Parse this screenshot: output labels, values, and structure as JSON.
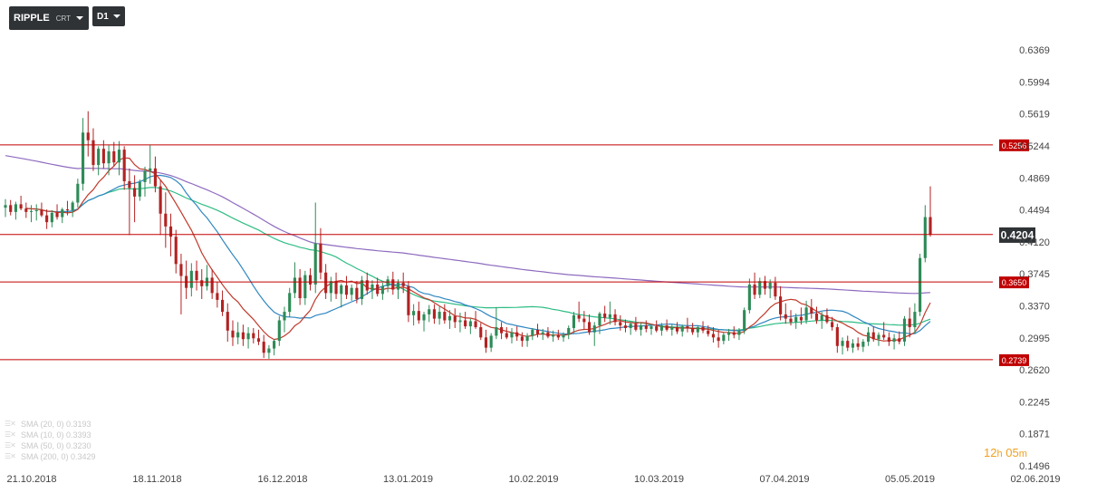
{
  "toolbar": {
    "symbol": "RIPPLE",
    "symbol_sub": "CRT",
    "timeframe": "D1"
  },
  "countdown": {
    "hours": "12",
    "hours_unit": "h",
    "minutes": "05",
    "minutes_unit": "m"
  },
  "legend": [
    {
      "label": "SMA (20, 0) 0.3193",
      "color": "#2e86c1"
    },
    {
      "label": "SMA (10, 0) 0.3393",
      "color": "#c0392b"
    },
    {
      "label": "SMA (50, 0) 0.3230",
      "color": "#2ebd85"
    },
    {
      "label": "SMA (200, 0) 0.3429",
      "color": "#8e6bbf"
    }
  ],
  "colors": {
    "bull": "#2e8b57",
    "bear": "#b22222",
    "level": "#c00000",
    "sma20": "#2e86c1",
    "sma10": "#c0392b",
    "sma50": "#2ebd85",
    "sma200": "#8e6bbf",
    "price_tag": "#2f3336"
  },
  "chart_data": {
    "type": "candlestick",
    "title": "",
    "y_ticks": [
      "0.6369",
      "0.5994",
      "0.5619",
      "0.5244",
      "0.4869",
      "0.4494",
      "0.4120",
      "0.3745",
      "0.3370",
      "0.2995",
      "0.2620",
      "0.2245",
      "0.1871",
      "0.1496"
    ],
    "y_range": [
      0.1496,
      0.6369
    ],
    "x_ticks": [
      "21.10.2018",
      "18.11.2018",
      "16.12.2018",
      "13.01.2019",
      "10.02.2019",
      "10.03.2019",
      "07.04.2019",
      "05.05.2019",
      "02.06.2019"
    ],
    "x_range": [
      "21.10.2018",
      "02.06.2019"
    ],
    "levels": [
      "0.5256",
      "0.4206",
      "0.3650",
      "0.2739"
    ],
    "current_price": "0.4204",
    "candles_ohlc": [
      [
        0.452,
        0.462,
        0.441,
        0.455
      ],
      [
        0.455,
        0.461,
        0.443,
        0.447
      ],
      [
        0.447,
        0.459,
        0.438,
        0.456
      ],
      [
        0.456,
        0.466,
        0.449,
        0.451
      ],
      [
        0.451,
        0.458,
        0.44,
        0.447
      ],
      [
        0.447,
        0.455,
        0.435,
        0.448
      ],
      [
        0.448,
        0.456,
        0.437,
        0.449
      ],
      [
        0.449,
        0.458,
        0.441,
        0.443
      ],
      [
        0.443,
        0.45,
        0.427,
        0.435
      ],
      [
        0.435,
        0.449,
        0.429,
        0.446
      ],
      [
        0.446,
        0.456,
        0.438,
        0.441
      ],
      [
        0.441,
        0.452,
        0.434,
        0.45
      ],
      [
        0.45,
        0.46,
        0.443,
        0.449
      ],
      [
        0.449,
        0.46,
        0.441,
        0.458
      ],
      [
        0.458,
        0.486,
        0.452,
        0.48
      ],
      [
        0.48,
        0.557,
        0.472,
        0.54
      ],
      [
        0.54,
        0.565,
        0.512,
        0.531
      ],
      [
        0.531,
        0.545,
        0.495,
        0.502
      ],
      [
        0.502,
        0.524,
        0.49,
        0.521
      ],
      [
        0.521,
        0.531,
        0.498,
        0.504
      ],
      [
        0.504,
        0.525,
        0.49,
        0.518
      ],
      [
        0.518,
        0.529,
        0.5,
        0.505
      ],
      [
        0.505,
        0.53,
        0.49,
        0.52
      ],
      [
        0.52,
        0.524,
        0.473,
        0.483
      ],
      [
        0.483,
        0.498,
        0.42,
        0.475
      ],
      [
        0.475,
        0.49,
        0.435,
        0.465
      ],
      [
        0.465,
        0.485,
        0.46,
        0.482
      ],
      [
        0.482,
        0.5,
        0.465,
        0.495
      ],
      [
        0.495,
        0.525,
        0.48,
        0.498
      ],
      [
        0.498,
        0.512,
        0.47,
        0.477
      ],
      [
        0.477,
        0.484,
        0.42,
        0.445
      ],
      [
        0.445,
        0.47,
        0.405,
        0.43
      ],
      [
        0.43,
        0.445,
        0.395,
        0.418
      ],
      [
        0.418,
        0.426,
        0.375,
        0.386
      ],
      [
        0.386,
        0.398,
        0.327,
        0.372
      ],
      [
        0.372,
        0.39,
        0.345,
        0.358
      ],
      [
        0.358,
        0.387,
        0.348,
        0.378
      ],
      [
        0.378,
        0.39,
        0.355,
        0.367
      ],
      [
        0.367,
        0.38,
        0.345,
        0.36
      ],
      [
        0.36,
        0.385,
        0.355,
        0.37
      ],
      [
        0.37,
        0.38,
        0.345,
        0.352
      ],
      [
        0.352,
        0.365,
        0.335,
        0.344
      ],
      [
        0.344,
        0.355,
        0.325,
        0.33
      ],
      [
        0.33,
        0.34,
        0.295,
        0.308
      ],
      [
        0.308,
        0.32,
        0.29,
        0.3
      ],
      [
        0.3,
        0.318,
        0.292,
        0.306
      ],
      [
        0.306,
        0.315,
        0.29,
        0.298
      ],
      [
        0.298,
        0.312,
        0.287,
        0.305
      ],
      [
        0.305,
        0.311,
        0.293,
        0.299
      ],
      [
        0.299,
        0.309,
        0.291,
        0.295
      ],
      [
        0.295,
        0.303,
        0.276,
        0.282
      ],
      [
        0.282,
        0.291,
        0.275,
        0.287
      ],
      [
        0.287,
        0.298,
        0.279,
        0.296
      ],
      [
        0.296,
        0.325,
        0.29,
        0.32
      ],
      [
        0.32,
        0.336,
        0.306,
        0.33
      ],
      [
        0.33,
        0.358,
        0.324,
        0.352
      ],
      [
        0.352,
        0.388,
        0.346,
        0.37
      ],
      [
        0.37,
        0.38,
        0.338,
        0.346
      ],
      [
        0.346,
        0.378,
        0.338,
        0.373
      ],
      [
        0.373,
        0.381,
        0.355,
        0.362
      ],
      [
        0.362,
        0.458,
        0.352,
        0.41
      ],
      [
        0.41,
        0.428,
        0.368,
        0.376
      ],
      [
        0.376,
        0.386,
        0.345,
        0.352
      ],
      [
        0.352,
        0.371,
        0.342,
        0.366
      ],
      [
        0.366,
        0.376,
        0.345,
        0.351
      ],
      [
        0.351,
        0.363,
        0.335,
        0.361
      ],
      [
        0.361,
        0.372,
        0.345,
        0.35
      ],
      [
        0.35,
        0.362,
        0.343,
        0.358
      ],
      [
        0.358,
        0.366,
        0.34,
        0.345
      ],
      [
        0.345,
        0.372,
        0.338,
        0.367
      ],
      [
        0.367,
        0.376,
        0.35,
        0.355
      ],
      [
        0.355,
        0.367,
        0.345,
        0.362
      ],
      [
        0.362,
        0.37,
        0.348,
        0.351
      ],
      [
        0.351,
        0.364,
        0.344,
        0.36
      ],
      [
        0.36,
        0.372,
        0.353,
        0.368
      ],
      [
        0.368,
        0.377,
        0.35,
        0.356
      ],
      [
        0.356,
        0.368,
        0.345,
        0.364
      ],
      [
        0.364,
        0.376,
        0.352,
        0.36
      ],
      [
        0.36,
        0.366,
        0.318,
        0.326
      ],
      [
        0.326,
        0.339,
        0.314,
        0.331
      ],
      [
        0.331,
        0.342,
        0.316,
        0.32
      ],
      [
        0.32,
        0.33,
        0.307,
        0.327
      ],
      [
        0.327,
        0.338,
        0.318,
        0.333
      ],
      [
        0.333,
        0.339,
        0.316,
        0.322
      ],
      [
        0.322,
        0.336,
        0.315,
        0.33
      ],
      [
        0.33,
        0.339,
        0.316,
        0.32
      ],
      [
        0.32,
        0.332,
        0.31,
        0.325
      ],
      [
        0.325,
        0.334,
        0.311,
        0.318
      ],
      [
        0.318,
        0.329,
        0.306,
        0.32
      ],
      [
        0.32,
        0.33,
        0.31,
        0.313
      ],
      [
        0.313,
        0.322,
        0.304,
        0.319
      ],
      [
        0.319,
        0.331,
        0.31,
        0.312
      ],
      [
        0.312,
        0.317,
        0.297,
        0.3
      ],
      [
        0.3,
        0.309,
        0.282,
        0.288
      ],
      [
        0.288,
        0.305,
        0.283,
        0.302
      ],
      [
        0.302,
        0.335,
        0.298,
        0.312
      ],
      [
        0.312,
        0.318,
        0.298,
        0.305
      ],
      [
        0.305,
        0.312,
        0.298,
        0.3
      ],
      [
        0.3,
        0.311,
        0.293,
        0.306
      ],
      [
        0.306,
        0.313,
        0.296,
        0.301
      ],
      [
        0.301,
        0.306,
        0.289,
        0.296
      ],
      [
        0.296,
        0.305,
        0.289,
        0.302
      ],
      [
        0.302,
        0.311,
        0.297,
        0.309
      ],
      [
        0.309,
        0.316,
        0.3,
        0.304
      ],
      [
        0.304,
        0.31,
        0.297,
        0.306
      ],
      [
        0.306,
        0.312,
        0.299,
        0.301
      ],
      [
        0.301,
        0.308,
        0.295,
        0.303
      ],
      [
        0.303,
        0.309,
        0.297,
        0.3
      ],
      [
        0.3,
        0.306,
        0.295,
        0.303
      ],
      [
        0.303,
        0.314,
        0.298,
        0.311
      ],
      [
        0.311,
        0.33,
        0.305,
        0.326
      ],
      [
        0.326,
        0.342,
        0.318,
        0.322
      ],
      [
        0.322,
        0.331,
        0.31,
        0.318
      ],
      [
        0.318,
        0.327,
        0.303,
        0.306
      ],
      [
        0.306,
        0.318,
        0.29,
        0.314
      ],
      [
        0.314,
        0.33,
        0.304,
        0.328
      ],
      [
        0.328,
        0.337,
        0.318,
        0.323
      ],
      [
        0.323,
        0.342,
        0.315,
        0.327
      ],
      [
        0.327,
        0.333,
        0.314,
        0.318
      ],
      [
        0.318,
        0.326,
        0.308,
        0.314
      ],
      [
        0.314,
        0.321,
        0.306,
        0.311
      ],
      [
        0.311,
        0.318,
        0.303,
        0.316
      ],
      [
        0.316,
        0.324,
        0.307,
        0.309
      ],
      [
        0.309,
        0.317,
        0.302,
        0.314
      ],
      [
        0.314,
        0.32,
        0.306,
        0.31
      ],
      [
        0.31,
        0.316,
        0.303,
        0.313
      ],
      [
        0.313,
        0.32,
        0.306,
        0.308
      ],
      [
        0.308,
        0.317,
        0.302,
        0.314
      ],
      [
        0.314,
        0.321,
        0.307,
        0.309
      ],
      [
        0.309,
        0.315,
        0.302,
        0.312
      ],
      [
        0.312,
        0.318,
        0.304,
        0.307
      ],
      [
        0.307,
        0.315,
        0.301,
        0.313
      ],
      [
        0.313,
        0.323,
        0.306,
        0.311
      ],
      [
        0.311,
        0.317,
        0.303,
        0.306
      ],
      [
        0.306,
        0.314,
        0.3,
        0.312
      ],
      [
        0.312,
        0.319,
        0.305,
        0.308
      ],
      [
        0.308,
        0.314,
        0.301,
        0.304
      ],
      [
        0.304,
        0.312,
        0.294,
        0.3
      ],
      [
        0.3,
        0.309,
        0.288,
        0.296
      ],
      [
        0.296,
        0.306,
        0.292,
        0.303
      ],
      [
        0.303,
        0.31,
        0.296,
        0.306
      ],
      [
        0.306,
        0.313,
        0.299,
        0.303
      ],
      [
        0.303,
        0.311,
        0.297,
        0.308
      ],
      [
        0.308,
        0.335,
        0.304,
        0.332
      ],
      [
        0.332,
        0.369,
        0.328,
        0.362
      ],
      [
        0.362,
        0.376,
        0.345,
        0.35
      ],
      [
        0.35,
        0.37,
        0.346,
        0.366
      ],
      [
        0.366,
        0.372,
        0.35,
        0.357
      ],
      [
        0.357,
        0.368,
        0.346,
        0.364
      ],
      [
        0.364,
        0.371,
        0.344,
        0.348
      ],
      [
        0.348,
        0.36,
        0.32,
        0.327
      ],
      [
        0.327,
        0.34,
        0.316,
        0.322
      ],
      [
        0.322,
        0.332,
        0.314,
        0.318
      ],
      [
        0.318,
        0.328,
        0.31,
        0.324
      ],
      [
        0.324,
        0.335,
        0.315,
        0.32
      ],
      [
        0.32,
        0.343,
        0.316,
        0.335
      ],
      [
        0.335,
        0.345,
        0.322,
        0.328
      ],
      [
        0.328,
        0.336,
        0.316,
        0.32
      ],
      [
        0.32,
        0.33,
        0.31,
        0.326
      ],
      [
        0.326,
        0.334,
        0.316,
        0.318
      ],
      [
        0.318,
        0.324,
        0.308,
        0.312
      ],
      [
        0.312,
        0.316,
        0.282,
        0.29
      ],
      [
        0.29,
        0.3,
        0.28,
        0.296
      ],
      [
        0.296,
        0.302,
        0.284,
        0.288
      ],
      [
        0.288,
        0.298,
        0.282,
        0.293
      ],
      [
        0.293,
        0.3,
        0.285,
        0.289
      ],
      [
        0.289,
        0.298,
        0.283,
        0.295
      ],
      [
        0.295,
        0.312,
        0.29,
        0.306
      ],
      [
        0.306,
        0.313,
        0.295,
        0.298
      ],
      [
        0.298,
        0.306,
        0.29,
        0.303
      ],
      [
        0.303,
        0.318,
        0.297,
        0.3
      ],
      [
        0.3,
        0.306,
        0.29,
        0.295
      ],
      [
        0.295,
        0.304,
        0.286,
        0.299
      ],
      [
        0.299,
        0.307,
        0.292,
        0.295
      ],
      [
        0.295,
        0.325,
        0.29,
        0.322
      ],
      [
        0.322,
        0.335,
        0.3,
        0.312
      ],
      [
        0.312,
        0.34,
        0.305,
        0.33
      ],
      [
        0.33,
        0.398,
        0.325,
        0.393
      ],
      [
        0.393,
        0.455,
        0.388,
        0.441
      ],
      [
        0.441,
        0.477,
        0.418,
        0.4204
      ]
    ]
  }
}
